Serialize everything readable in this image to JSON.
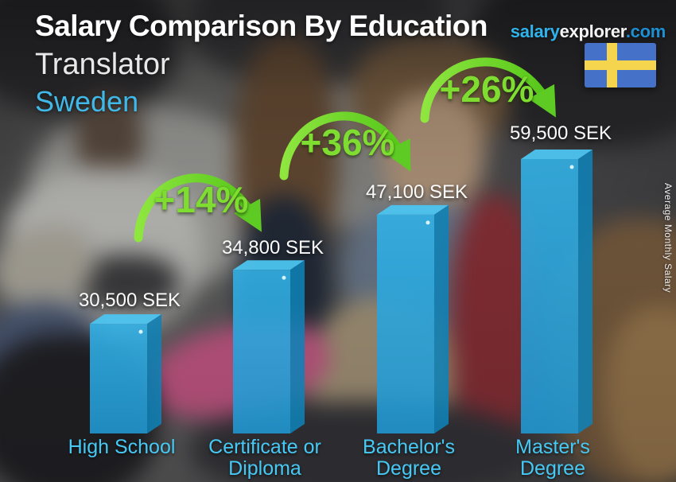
{
  "header": {
    "title": "Salary Comparison By Education",
    "brand_salary": "salary",
    "brand_explorer": "explorer",
    "brand_domain": ".com",
    "job_title": "Translator",
    "country": "Sweden"
  },
  "side_label": "Average Monthly Salary",
  "flag": {
    "country": "Sweden",
    "field_color": "#4671c9",
    "cross_color": "#f5d44e"
  },
  "chart_data": {
    "type": "bar",
    "title": "Salary Comparison By Education",
    "subtitle": "Translator",
    "region": "Sweden",
    "currency": "SEK",
    "ylabel": "Average Monthly Salary",
    "categories": [
      "High School",
      "Certificate or Diploma",
      "Bachelor's Degree",
      "Master's Degree"
    ],
    "category_lines": [
      [
        "High School"
      ],
      [
        "Certificate or",
        "Diploma"
      ],
      [
        "Bachelor's",
        "Degree"
      ],
      [
        "Master's",
        "Degree"
      ]
    ],
    "values": [
      30500,
      34800,
      47100,
      59500
    ],
    "value_labels": [
      "30,500 SEK",
      "34,800 SEK",
      "47,100 SEK",
      "59,500 SEK"
    ],
    "increase_labels": [
      "+14%",
      "+36%",
      "+26%"
    ],
    "bar_color": "#29a8de",
    "bar_top_color": "#4cc4ef",
    "bar_side_color": "#0f82b6",
    "arrow_color": "#72d92e",
    "category_label_color": "#46c9f5",
    "value_label_color": "#fbfbfb"
  }
}
